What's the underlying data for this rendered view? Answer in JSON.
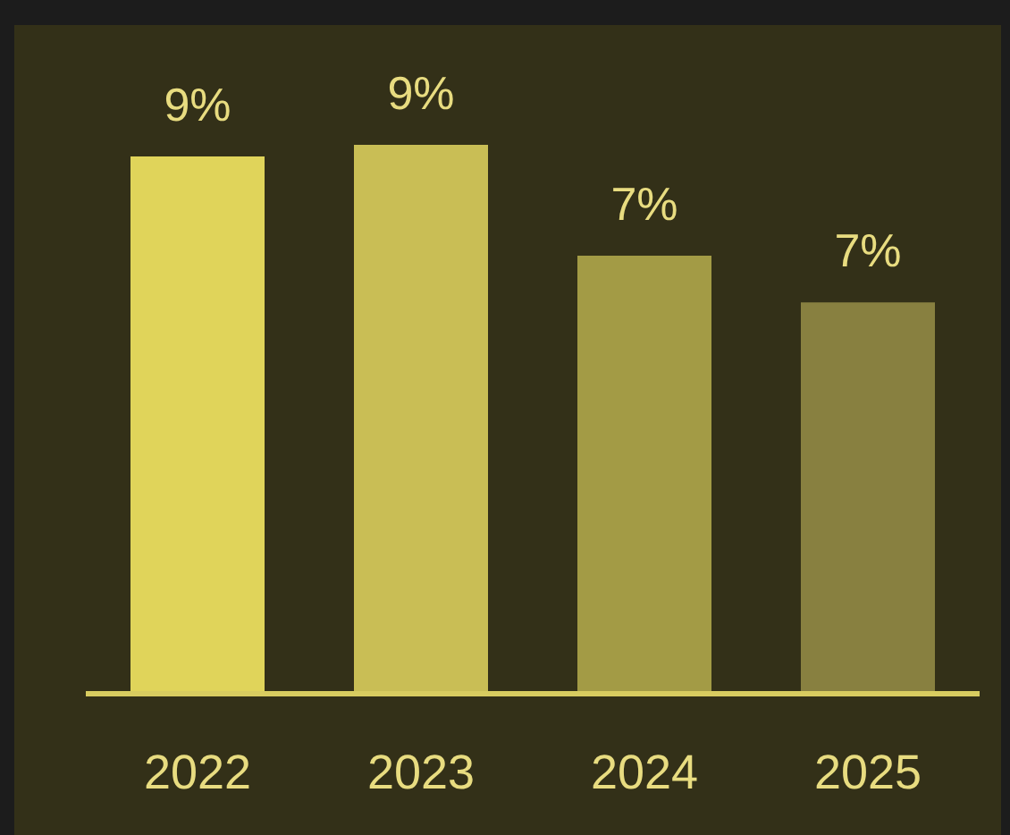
{
  "chart_data": {
    "type": "bar",
    "categories": [
      "2022",
      "2023",
      "2024",
      "2025"
    ],
    "values": [
      9.2,
      9.4,
      7.5,
      6.7
    ],
    "colors": [
      "#e0d45a",
      "#c9be55",
      "#a39b45",
      "#888040"
    ],
    "value_labels": [
      "9%",
      "9%",
      "7%",
      "7%"
    ],
    "grid": false,
    "legend": false
  }
}
